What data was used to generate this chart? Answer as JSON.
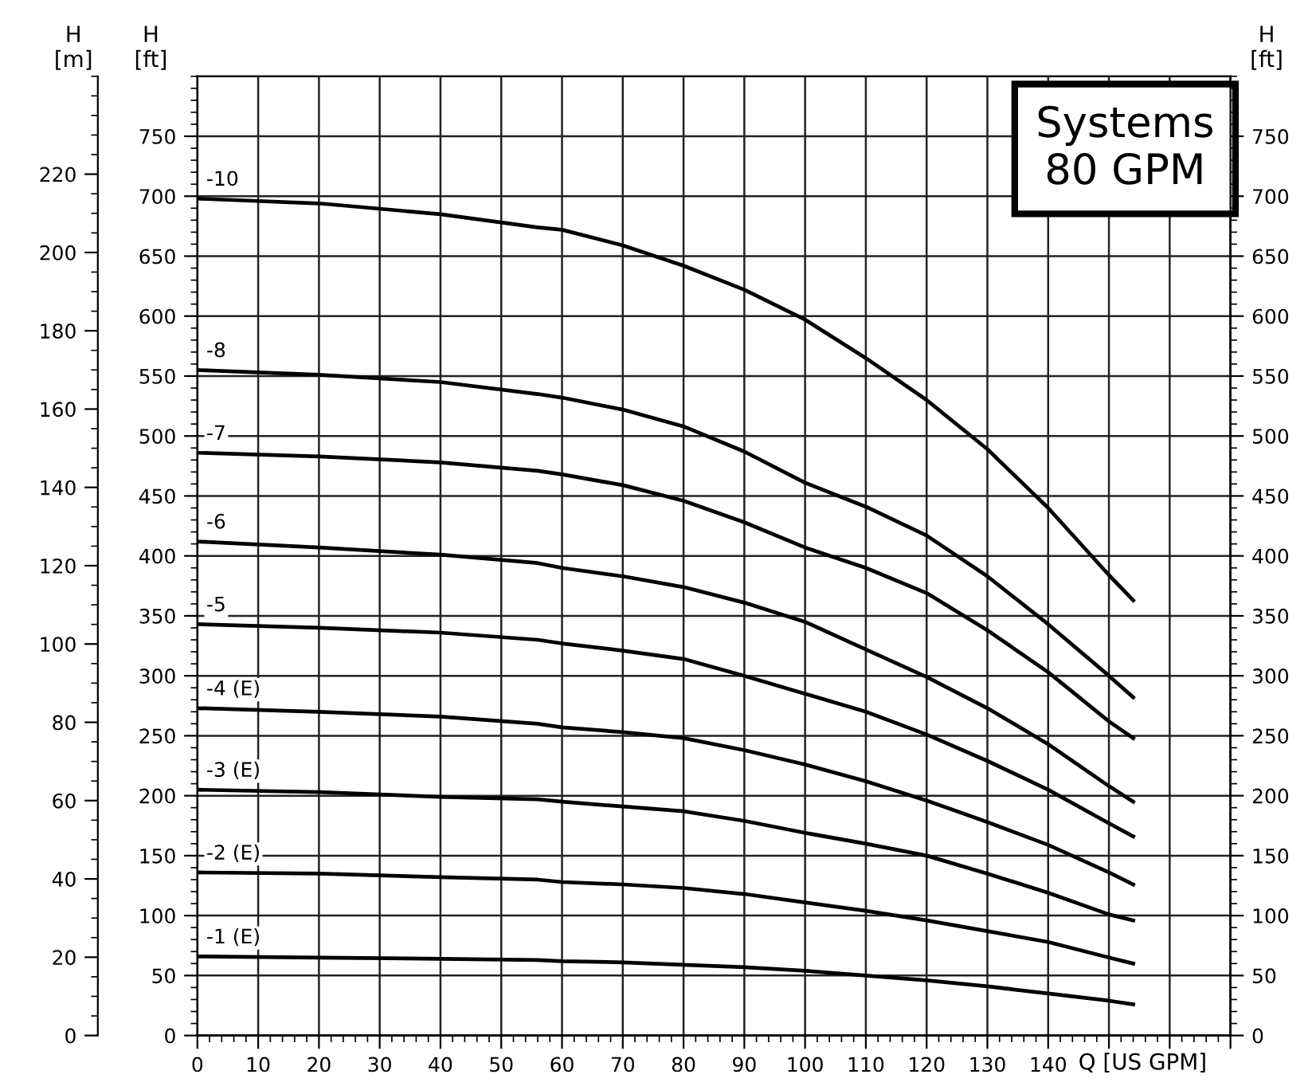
{
  "chart_data": {
    "type": "line",
    "xlabel": "Q [US GPM]",
    "ylabel": "H\n[ft]",
    "y2label": "H\n[ft]",
    "y3label": "H\n[m]",
    "x": [
      0,
      20,
      40,
      56,
      60,
      70,
      80,
      90,
      100,
      110,
      120,
      130,
      140,
      150,
      154
    ],
    "series": [
      {
        "name": "-10",
        "color": "#000000",
        "values": [
          698,
          694,
          685,
          674,
          672,
          659,
          642,
          622,
          597,
          565,
          530,
          489,
          440,
          384,
          363
        ]
      },
      {
        "name": "-8",
        "color": "#000000",
        "values": [
          555,
          551,
          545,
          535,
          532,
          522,
          508,
          487,
          461,
          441,
          417,
          383,
          343,
          300,
          282
        ]
      },
      {
        "name": "-7",
        "color": "#000000",
        "values": [
          486,
          483,
          478,
          471,
          468,
          459,
          446,
          428,
          407,
          390,
          369,
          338,
          303,
          262,
          248
        ]
      },
      {
        "name": "-6",
        "color": "#000000",
        "values": [
          412,
          407,
          401,
          394,
          390,
          383,
          374,
          361,
          345,
          322,
          299,
          273,
          243,
          208,
          195
        ]
      },
      {
        "name": "-5",
        "color": "#000000",
        "values": [
          343,
          340,
          336,
          330,
          327,
          321,
          314,
          300,
          285,
          270,
          251,
          229,
          205,
          177,
          166
        ]
      },
      {
        "name": "-4 (E)",
        "color": "#000000",
        "values": [
          273,
          270,
          266,
          260,
          257,
          253,
          248,
          238,
          226,
          212,
          196,
          178,
          159,
          136,
          126
        ]
      },
      {
        "name": "-3 (E)",
        "color": "#000000",
        "values": [
          205,
          203,
          199,
          197,
          195,
          191,
          187,
          179,
          169,
          160,
          150,
          135,
          119,
          101,
          96
        ]
      },
      {
        "name": "-2 (E)",
        "color": "#000000",
        "values": [
          136,
          135,
          132,
          130,
          128,
          126,
          123,
          118,
          111,
          104,
          96,
          87,
          78,
          65,
          60
        ]
      },
      {
        "name": "-1 (E)",
        "color": "#000000",
        "values": [
          66,
          65,
          64,
          63,
          62,
          61,
          59,
          57,
          54,
          50,
          46,
          41,
          35,
          29,
          26
        ]
      }
    ],
    "xlim": [
      0,
      170
    ],
    "xticks": [
      0,
      10,
      20,
      30,
      40,
      50,
      60,
      70,
      80,
      90,
      100,
      110,
      120,
      130,
      140,
      {
        "value": 150,
        "label": null
      },
      {
        "value": 160,
        "label": null
      },
      {
        "value": 170,
        "label": null
      }
    ],
    "ylim": [
      0,
      800
    ],
    "yticks": [
      0,
      50,
      100,
      150,
      200,
      250,
      300,
      350,
      400,
      450,
      500,
      550,
      600,
      650,
      700,
      750
    ],
    "y2lim": [
      0,
      800
    ],
    "y2ticks": [
      0,
      50,
      100,
      150,
      200,
      250,
      300,
      350,
      400,
      450,
      500,
      550,
      600,
      650,
      700,
      750
    ],
    "y3lim": [
      0,
      245
    ],
    "y3ticks": [
      0,
      20,
      40,
      60,
      80,
      100,
      120,
      140,
      160,
      180,
      200,
      220
    ],
    "grid": true,
    "legend": false,
    "marker": "none",
    "line_style": "solid",
    "annotations": [
      "Systems\n80 GPM"
    ]
  }
}
